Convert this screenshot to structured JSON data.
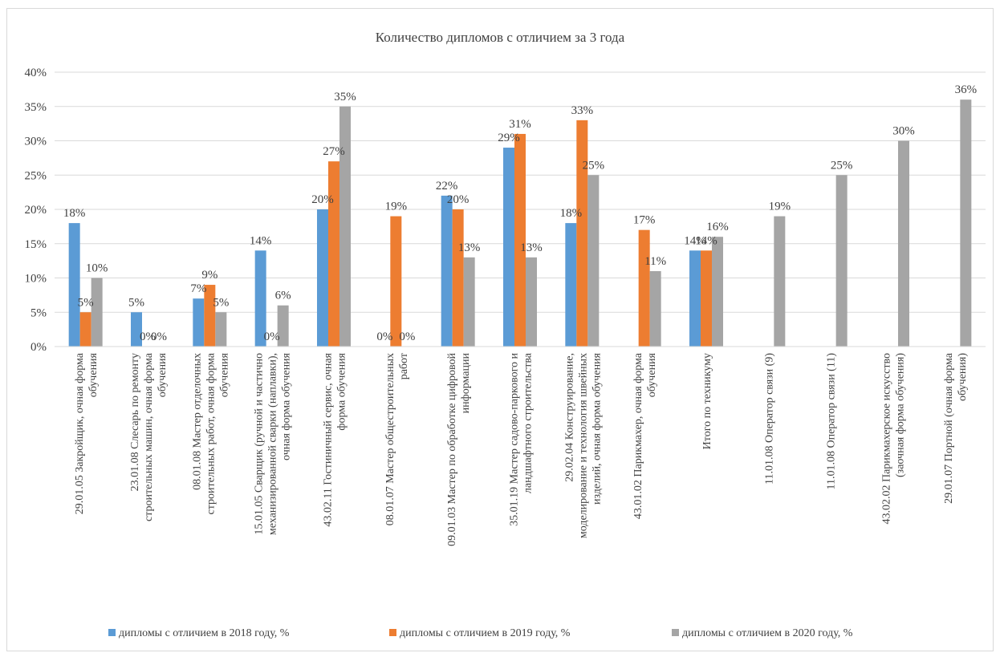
{
  "chart_data": {
    "type": "bar",
    "title": "Количество дипломов с отличием за 3 года",
    "xlabel": "",
    "ylabel": "",
    "ylim": [
      0,
      40
    ],
    "y_tick_labels": [
      "0%",
      "5%",
      "10%",
      "15%",
      "20%",
      "25%",
      "30%",
      "35%",
      "40%"
    ],
    "grid": "horizontal",
    "legend_position": "bottom",
    "categories": [
      [
        "29.01.05 Закройщик, очная форма",
        "обучения"
      ],
      [
        "23.01.08 Слесарь по ремонту",
        "строительных машин, очная форма",
        "обучения"
      ],
      [
        "08.01.08 Мастер отделочных",
        "строительных работ, очная форма",
        "обучения"
      ],
      [
        "15.01.05 Сварщик (ручной и частично",
        "механизированной сварки (наплавки),",
        "очная форма обучения"
      ],
      [
        "43.02.11 Гостиничный сервис, очная",
        "форма обучения"
      ],
      [
        "08.01.07 Мастер общестроительных",
        "работ"
      ],
      [
        "09.01.03 Мастер по обработке цифровой",
        "информации"
      ],
      [
        "35.01.19 Мастер садово-паркового и",
        "ландшафтного строительства"
      ],
      [
        "29.02.04 Конструирование,",
        "моделирование и технология швейных",
        "изделий, очная форма обучения"
      ],
      [
        "43.01.02 Парикмахер, очная форма",
        "обучения"
      ],
      [
        "Итого по техникуму"
      ],
      [
        "11.01.08 Оператор связи (9)"
      ],
      [
        "11.01.08 Оператор связи (11)"
      ],
      [
        "43.02.02 Парикмахерское искусство",
        "(заочная форма обучения)"
      ],
      [
        "29.01.07 Портной (очная форма",
        "обучения)"
      ]
    ],
    "series": [
      {
        "name": "дипломы с отличием в 2018 году, %",
        "color": "#5b9bd5",
        "values": [
          18,
          5,
          7,
          14,
          20,
          0,
          22,
          29,
          18,
          null,
          14,
          null,
          null,
          null,
          null
        ],
        "labels": [
          "18%",
          "5%",
          "7%",
          "14%",
          "20%",
          "0%",
          "22%",
          "29%",
          "18%",
          "",
          "14%",
          "",
          "",
          "",
          ""
        ]
      },
      {
        "name": "дипломы с отличием в 2019 году, %",
        "color": "#ed7d31",
        "values": [
          5,
          0,
          9,
          0,
          27,
          19,
          20,
          31,
          33,
          17,
          14,
          null,
          null,
          null,
          null
        ],
        "labels": [
          "5%",
          "0%",
          "9%",
          "0%",
          "27%",
          "19%",
          "20%",
          "31%",
          "33%",
          "17%",
          "14%",
          "",
          "",
          "",
          ""
        ]
      },
      {
        "name": "дипломы с отличием в 2020 году, %",
        "color": "#a5a5a5",
        "values": [
          10,
          0,
          5,
          6,
          35,
          0,
          13,
          13,
          25,
          11,
          16,
          19,
          25,
          30,
          36
        ],
        "labels": [
          "10%",
          "0%",
          "5%",
          "6%",
          "35%",
          "0%",
          "13%",
          "13%",
          "25%",
          "11%",
          "16%",
          "19%",
          "25%",
          "30%",
          "36%"
        ]
      }
    ]
  }
}
